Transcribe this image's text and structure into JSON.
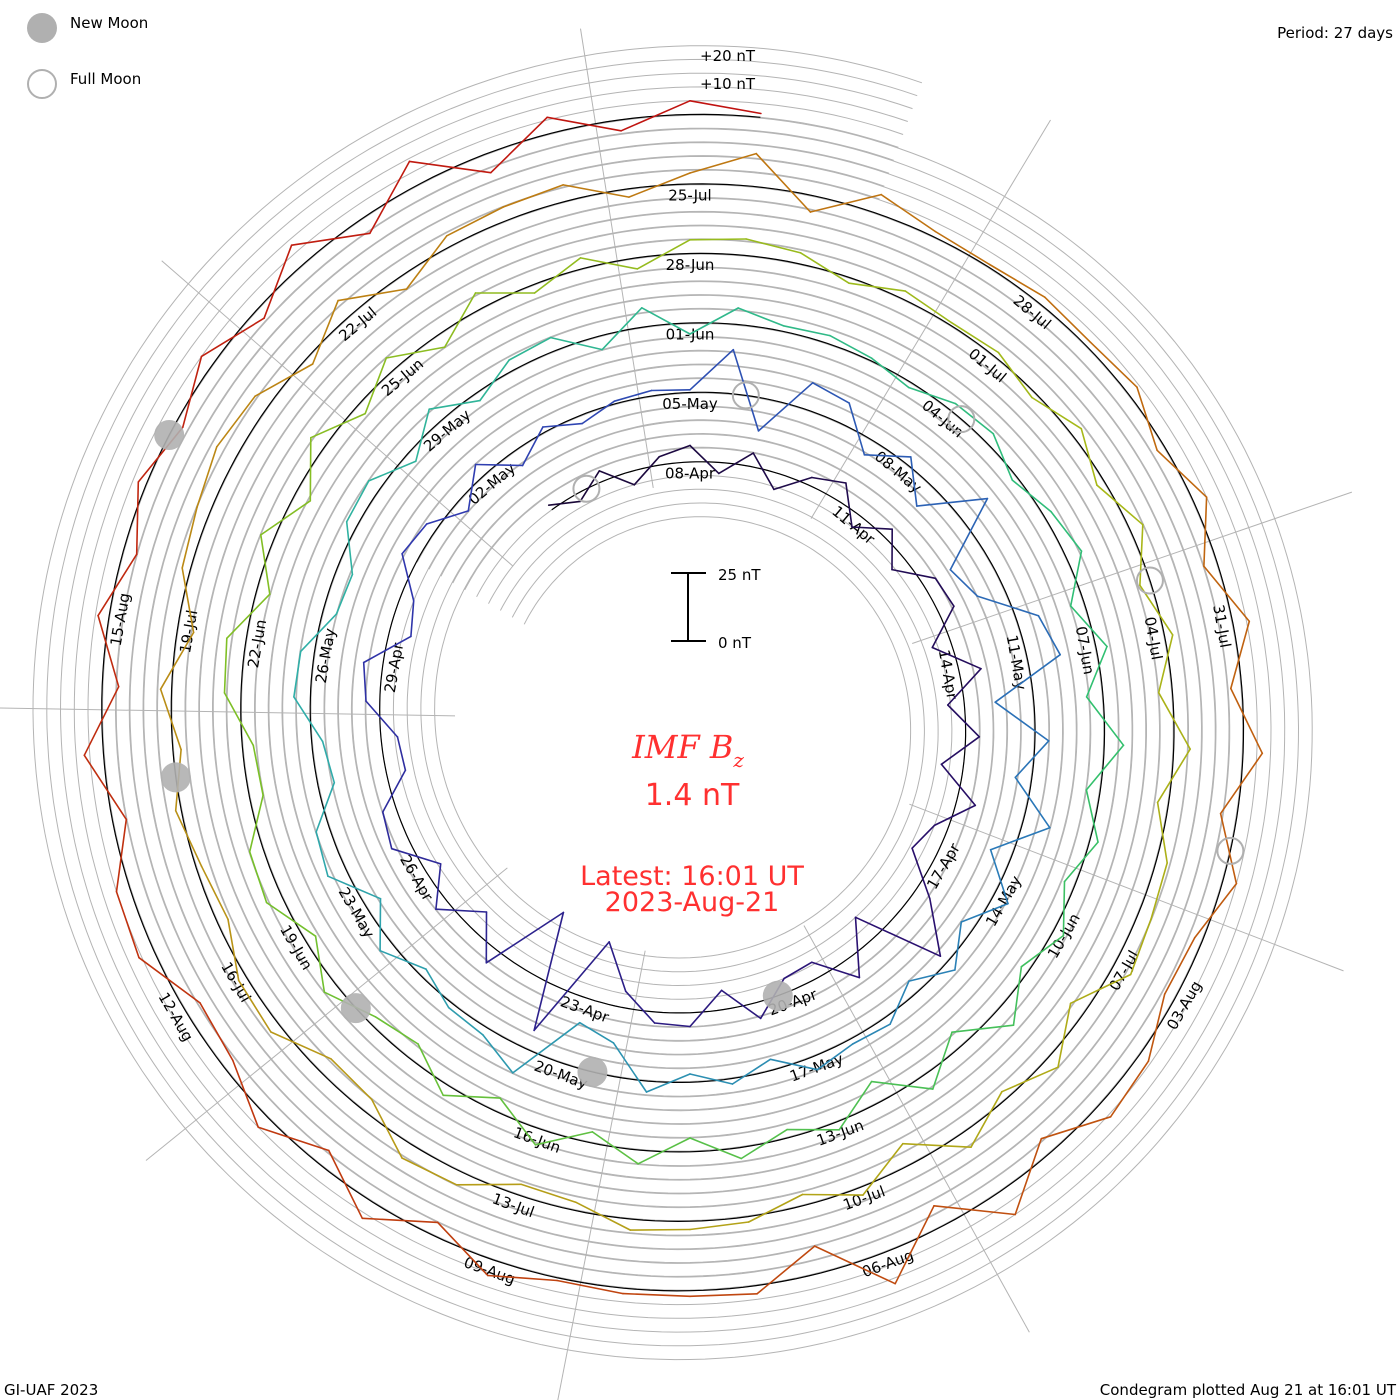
{
  "legend": {
    "new_moon": "New Moon",
    "full_moon": "Full Moon",
    "period": "Period: 27 days",
    "plus20": "+20 nT",
    "plus10": "+10 nT",
    "scale_top": "25 nT",
    "scale_bottom": "0 nT"
  },
  "center": {
    "title_main": "IMF B",
    "title_sub": "z",
    "value": "1.4 nT",
    "latest_line1": "Latest: 16:01 UT",
    "latest_line2": "2023-Aug-21"
  },
  "footer": {
    "left": "GI-UAF 2023",
    "right": "Condegram plotted Aug 21 at 16:01 UT"
  },
  "chart_data": {
    "type": "line",
    "subtype": "spiral condegram",
    "title": "IMF Bz",
    "units": "nT",
    "period_days": 27,
    "reference_date": "2023-04-08T00:00:00Z",
    "start": "2023-04-05T12:00:00Z",
    "step_hours": 12,
    "scale_nT_per_gridline": 5,
    "colors": [
      "#1a0838",
      "#2a1070",
      "#3038b0",
      "#2a7ab8",
      "#30b0a8",
      "#30c070",
      "#78c028",
      "#a8b818",
      "#b89818",
      "#c07010",
      "#c04010",
      "#c01010"
    ],
    "bz": [
      2,
      -3,
      4,
      -5,
      3,
      6,
      -4,
      5,
      -6,
      3,
      7,
      -5,
      4,
      -6,
      5,
      6,
      -7,
      8,
      -6,
      5,
      -8,
      7,
      -5,
      -9,
      6,
      22,
      -10,
      8,
      -6,
      -5,
      6,
      -7,
      5,
      4,
      -6,
      -22,
      18,
      -25,
      6,
      -8,
      5,
      -6,
      7,
      5,
      -7,
      -6,
      5,
      7,
      -8,
      -5,
      6,
      4,
      -5,
      5,
      -6,
      2,
      -3,
      1,
      2,
      1,
      16,
      -12,
      10,
      8,
      -6,
      3,
      -9,
      12,
      -14,
      -10,
      8,
      12,
      -14,
      5,
      -6,
      10,
      -8,
      6,
      -5,
      4,
      -5,
      3,
      2,
      5,
      -4,
      2,
      -3,
      4,
      -12,
      -16,
      10,
      3,
      2,
      -3,
      5,
      -6,
      7,
      5,
      -6,
      -4,
      6,
      5,
      -5,
      -6,
      4,
      5,
      -4,
      6,
      -3,
      4,
      5,
      -5,
      7,
      -4,
      6,
      2,
      3,
      1,
      -2,
      3,
      4,
      -2,
      3,
      6,
      -5,
      4,
      -6,
      7,
      -5,
      3,
      -4,
      4,
      -3,
      8,
      -6,
      6,
      -8,
      3,
      -3,
      4,
      -5,
      5,
      -4,
      6,
      -5,
      4,
      -6,
      -3,
      5,
      -4,
      6,
      5,
      -5,
      -4,
      6,
      7,
      -5,
      5,
      -6,
      6,
      -4,
      5,
      -5,
      6,
      -3,
      4,
      -4,
      5,
      6,
      4,
      -2,
      3,
      1,
      2,
      -2,
      4,
      -3,
      5,
      -4,
      3,
      -5,
      6,
      -4,
      4,
      5,
      7,
      -6,
      5,
      -3,
      6,
      -8,
      3,
      -4,
      2,
      3,
      4,
      -3,
      -4,
      5,
      6,
      -5,
      -6,
      4,
      3,
      -4,
      -2,
      2,
      -3,
      4,
      -6,
      3,
      5,
      8,
      6,
      -3,
      7,
      -5,
      4,
      5,
      6,
      -3,
      4,
      12,
      -6,
      7,
      2,
      1,
      3,
      2,
      4,
      -3,
      5,
      -5,
      6,
      -4,
      7,
      -6,
      5,
      -3,
      -4,
      4,
      6,
      -6,
      10,
      -8,
      12,
      -10,
      3,
      2,
      2,
      1,
      6,
      -5,
      7,
      -6,
      5,
      -4,
      -6,
      6,
      5,
      -5,
      7,
      -6,
      4,
      -5,
      3,
      -3,
      5,
      -4,
      8,
      -6,
      9,
      -7,
      6,
      -4,
      5,
      1.4
    ],
    "date_labels": [
      {
        "date": "2023-04-08",
        "text": "08-Apr"
      },
      {
        "date": "2023-04-11",
        "text": "11-Apr"
      },
      {
        "date": "2023-04-14",
        "text": "14-Apr"
      },
      {
        "date": "2023-04-17",
        "text": "17-Apr"
      },
      {
        "date": "2023-04-20",
        "text": "20-Apr"
      },
      {
        "date": "2023-04-23",
        "text": "23-Apr"
      },
      {
        "date": "2023-04-26",
        "text": "26-Apr"
      },
      {
        "date": "2023-04-29",
        "text": "29-Apr"
      },
      {
        "date": "2023-05-02",
        "text": "02-May"
      },
      {
        "date": "2023-05-05",
        "text": "05-May"
      },
      {
        "date": "2023-05-08",
        "text": "08-May"
      },
      {
        "date": "2023-05-11",
        "text": "11-May"
      },
      {
        "date": "2023-05-14",
        "text": "14-May"
      },
      {
        "date": "2023-05-17",
        "text": "17-May"
      },
      {
        "date": "2023-05-20",
        "text": "20-May"
      },
      {
        "date": "2023-05-23",
        "text": "23-May"
      },
      {
        "date": "2023-05-26",
        "text": "26-May"
      },
      {
        "date": "2023-05-29",
        "text": "29-May"
      },
      {
        "date": "2023-06-01",
        "text": "01-Jun"
      },
      {
        "date": "2023-06-04",
        "text": "04-Jun"
      },
      {
        "date": "2023-06-07",
        "text": "07-Jun"
      },
      {
        "date": "2023-06-10",
        "text": "10-Jun"
      },
      {
        "date": "2023-06-13",
        "text": "13-Jun"
      },
      {
        "date": "2023-06-16",
        "text": "16-Jun"
      },
      {
        "date": "2023-06-19",
        "text": "19-Jun"
      },
      {
        "date": "2023-06-22",
        "text": "22-Jun"
      },
      {
        "date": "2023-06-25",
        "text": "25-Jun"
      },
      {
        "date": "2023-06-28",
        "text": "28-Jun"
      },
      {
        "date": "2023-07-01",
        "text": "01-Jul"
      },
      {
        "date": "2023-07-04",
        "text": "04-Jul"
      },
      {
        "date": "2023-07-07",
        "text": "07-Jul"
      },
      {
        "date": "2023-07-10",
        "text": "10-Jul"
      },
      {
        "date": "2023-07-13",
        "text": "13-Jul"
      },
      {
        "date": "2023-07-16",
        "text": "16-Jul"
      },
      {
        "date": "2023-07-19",
        "text": "19-Jul"
      },
      {
        "date": "2023-07-22",
        "text": "22-Jul"
      },
      {
        "date": "2023-07-25",
        "text": "25-Jul"
      },
      {
        "date": "2023-07-28",
        "text": "28-Jul"
      },
      {
        "date": "2023-07-31",
        "text": "31-Jul"
      },
      {
        "date": "2023-08-03",
        "text": "03-Aug"
      },
      {
        "date": "2023-08-06",
        "text": "06-Aug"
      },
      {
        "date": "2023-08-09",
        "text": "09-Aug"
      },
      {
        "date": "2023-08-12",
        "text": "12-Aug"
      },
      {
        "date": "2023-08-15",
        "text": "15-Aug"
      }
    ],
    "new_moons": [
      "2023-04-20T04:12:00Z",
      "2023-05-19T15:53:00Z",
      "2023-06-18T04:37:00Z",
      "2023-07-17T18:32:00Z",
      "2023-08-16T09:38:00Z"
    ],
    "full_moons": [
      "2023-04-06T04:34:00Z",
      "2023-05-05T17:34:00Z",
      "2023-06-04T03:41:00Z",
      "2023-07-03T11:38:00Z",
      "2023-08-01T18:31:00Z"
    ]
  }
}
